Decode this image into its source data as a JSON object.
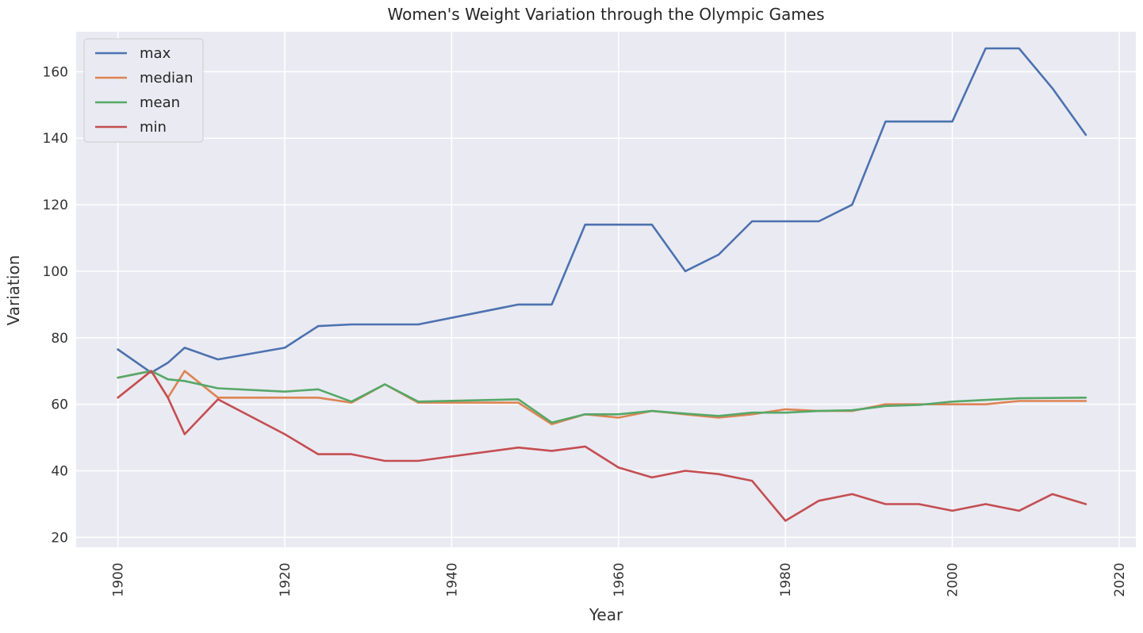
{
  "chart_data": {
    "type": "line",
    "title": "Women's Weight Variation through the Olympic Games",
    "xlabel": "Year",
    "ylabel": "Variation",
    "xlim": [
      1895,
      2022
    ],
    "ylim": [
      17,
      172
    ],
    "x_ticks": [
      1900,
      1920,
      1940,
      1960,
      1980,
      2000,
      2020
    ],
    "y_ticks": [
      20,
      40,
      60,
      80,
      100,
      120,
      140,
      160
    ],
    "grid": true,
    "legend_position": "top-left",
    "x": [
      1900,
      1904,
      1906,
      1908,
      1912,
      1920,
      1924,
      1928,
      1932,
      1936,
      1948,
      1952,
      1956,
      1960,
      1964,
      1968,
      1972,
      1976,
      1980,
      1984,
      1988,
      1992,
      1996,
      2000,
      2004,
      2008,
      2012,
      2016
    ],
    "series": [
      {
        "name": "max",
        "color": "#4c72b0",
        "values": [
          76.5,
          69.5,
          72.5,
          77,
          73.5,
          77,
          83.5,
          84,
          84,
          84,
          90,
          90,
          114,
          114,
          114,
          100,
          105,
          115,
          115,
          115,
          120,
          145,
          145,
          145,
          167,
          167,
          155,
          141
        ]
      },
      {
        "name": "median",
        "color": "#dd8452",
        "values": [
          68,
          70,
          62,
          70,
          62,
          62,
          62,
          60.5,
          66,
          60.5,
          60.5,
          54,
          57,
          56,
          58,
          57,
          56,
          57,
          58.5,
          58,
          58,
          60,
          60,
          60,
          60,
          61,
          61,
          61
        ]
      },
      {
        "name": "mean",
        "color": "#55a868",
        "values": [
          68,
          70,
          67.5,
          67,
          64.8,
          63.8,
          64.5,
          60.8,
          66,
          60.8,
          61.5,
          54.5,
          57,
          57,
          58,
          57.2,
          56.5,
          57.5,
          57.5,
          58,
          58.2,
          59.5,
          59.8,
          60.8,
          61.3,
          61.8,
          61.9,
          62
        ]
      },
      {
        "name": "min",
        "color": "#c44e52",
        "values": [
          62,
          70,
          62,
          51,
          61.5,
          51,
          45,
          45,
          43,
          43,
          47,
          46,
          47.3,
          41,
          38,
          40,
          39,
          37,
          25,
          31,
          33,
          30,
          30,
          28,
          30,
          28,
          33,
          30
        ]
      }
    ]
  }
}
